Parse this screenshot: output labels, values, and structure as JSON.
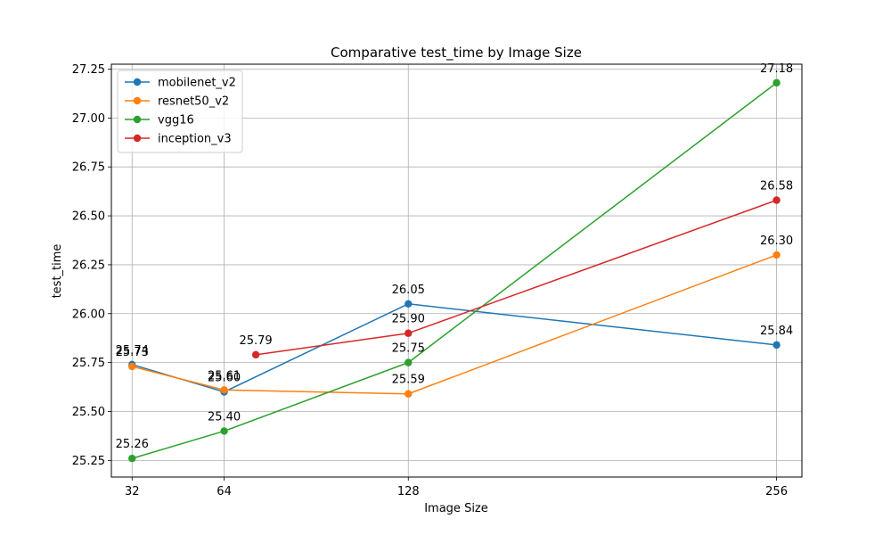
{
  "chart_data": {
    "type": "line",
    "title": "Comparative test_time by Image Size",
    "xlabel": "Image Size",
    "ylabel": "test_time",
    "xlim": [
      24.8,
      264.8
    ],
    "ylim": [
      25.165,
      27.275
    ],
    "xticks": [
      32,
      64,
      128,
      256
    ],
    "xtick_labels": [
      "32",
      "64",
      "128",
      "256"
    ],
    "yticks": [
      25.25,
      25.5,
      25.75,
      26.0,
      26.25,
      26.5,
      26.75,
      27.0,
      27.25
    ],
    "ytick_labels": [
      "25.25",
      "25.50",
      "25.75",
      "26.00",
      "26.25",
      "26.50",
      "26.75",
      "27.00",
      "27.25"
    ],
    "grid": true,
    "legend_position": "top-left",
    "series": [
      {
        "name": "mobilenet_v2",
        "color": "#1f77b4",
        "x": [
          32,
          64,
          128,
          256
        ],
        "y": [
          25.74,
          25.6,
          26.05,
          25.84
        ],
        "labels": [
          "25.74",
          "25.60",
          "26.05",
          "25.84"
        ]
      },
      {
        "name": "resnet50_v2",
        "color": "#ff7f0e",
        "x": [
          32,
          64,
          128,
          256
        ],
        "y": [
          25.73,
          25.61,
          25.59,
          26.3
        ],
        "labels": [
          "25.73",
          "25.61",
          "25.59",
          "26.30"
        ]
      },
      {
        "name": "vgg16",
        "color": "#2ca02c",
        "x": [
          32,
          64,
          128,
          256
        ],
        "y": [
          25.26,
          25.4,
          25.75,
          27.18
        ],
        "labels": [
          "25.26",
          "25.40",
          "25.75",
          "27.18"
        ]
      },
      {
        "name": "inception_v3",
        "color": "#d62728",
        "x": [
          75,
          128,
          256
        ],
        "y": [
          25.79,
          25.9,
          26.58
        ],
        "labels": [
          "25.79",
          "25.90",
          "26.58"
        ]
      }
    ]
  }
}
